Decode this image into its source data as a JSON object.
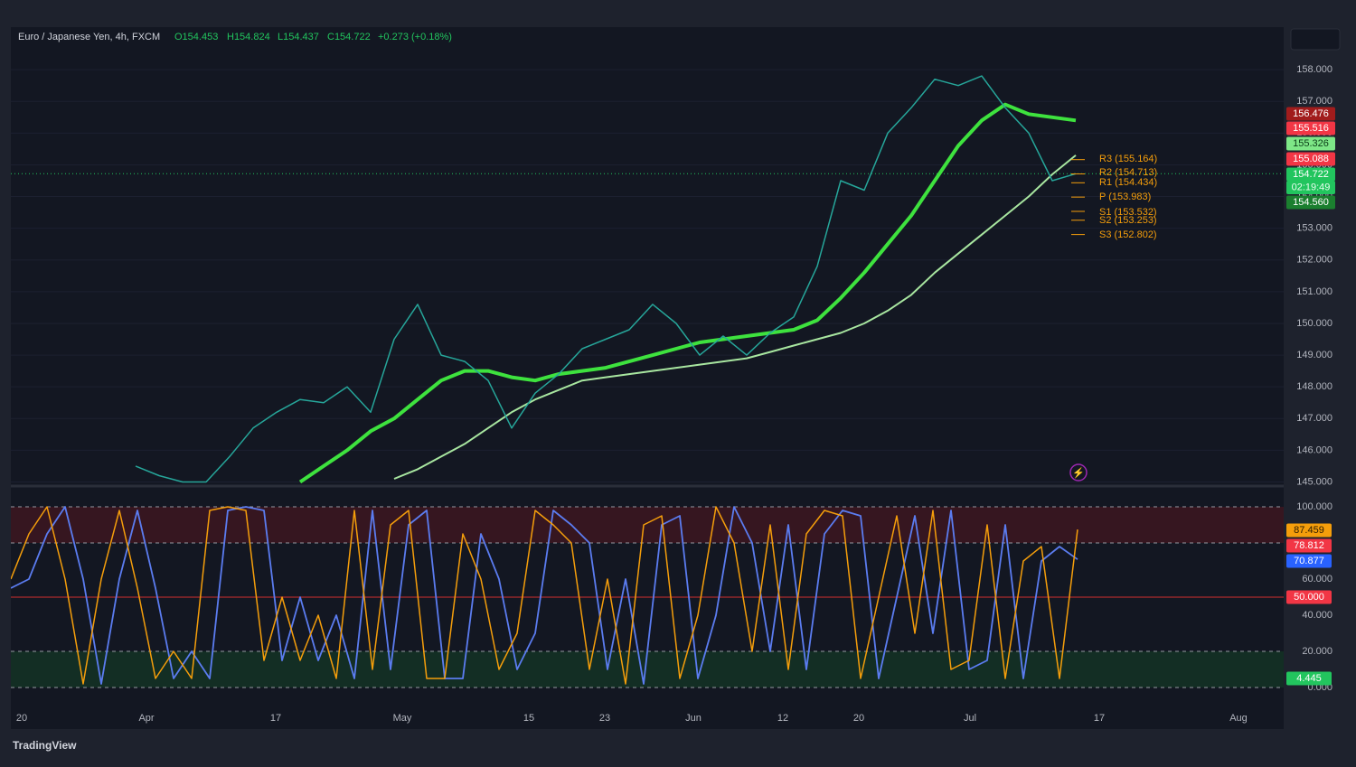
{
  "header": {
    "symbol": "Euro / Japanese Yen, 4h, FXCM",
    "open": "O154.453",
    "high": "H154.824",
    "low": "L154.437",
    "close": "C154.722",
    "change": "+0.273 (+0.18%)"
  },
  "price_pane": {
    "ylim": [
      144.9,
      159.2
    ],
    "yticks": [
      {
        "value": 158,
        "label": "158.000"
      },
      {
        "value": 157,
        "label": "157.000"
      },
      {
        "value": 156,
        "label": "156.000"
      },
      {
        "value": 155,
        "label": "155.000"
      },
      {
        "value": 154,
        "label": "154.000"
      },
      {
        "value": 153,
        "label": "153.000"
      },
      {
        "value": 152,
        "label": "152.000"
      },
      {
        "value": 151,
        "label": "151.000"
      },
      {
        "value": 150,
        "label": "150.000"
      },
      {
        "value": 149,
        "label": "149.000"
      },
      {
        "value": 148,
        "label": "148.000"
      },
      {
        "value": 147,
        "label": "147.000"
      },
      {
        "value": 146,
        "label": "146.000"
      },
      {
        "value": 145,
        "label": "145.000"
      }
    ],
    "close": [
      145.5,
      145.2,
      145.0,
      145.0,
      145.8,
      146.7,
      147.2,
      147.6,
      147.5,
      148.0,
      147.2,
      149.5,
      150.6,
      149.0,
      148.8,
      148.2,
      146.7,
      147.8,
      148.4,
      149.2,
      149.5,
      149.8,
      150.6,
      150.0,
      149.0,
      149.6,
      149.0,
      149.7,
      150.2,
      151.8,
      154.5,
      154.2,
      156.0,
      156.8,
      157.7,
      157.5,
      157.8,
      156.8,
      156.0,
      154.5,
      154.72
    ],
    "ma_fast": [
      null,
      null,
      null,
      null,
      null,
      null,
      null,
      145.0,
      145.5,
      146.0,
      146.6,
      147.0,
      147.6,
      148.2,
      148.5,
      148.5,
      148.3,
      148.2,
      148.4,
      148.5,
      148.6,
      148.8,
      149.0,
      149.2,
      149.4,
      149.5,
      149.6,
      149.7,
      149.8,
      150.1,
      150.8,
      151.6,
      152.5,
      153.4,
      154.5,
      155.6,
      156.4,
      156.9,
      156.6,
      156.5,
      156.4
    ],
    "ma_slow": [
      null,
      null,
      null,
      null,
      null,
      null,
      null,
      null,
      null,
      null,
      null,
      145.1,
      145.4,
      145.8,
      146.2,
      146.7,
      147.2,
      147.6,
      147.9,
      148.2,
      148.3,
      148.4,
      148.5,
      148.6,
      148.7,
      148.8,
      148.9,
      149.1,
      149.3,
      149.5,
      149.7,
      150.0,
      150.4,
      150.9,
      151.6,
      152.2,
      152.8,
      153.4,
      154.0,
      154.7,
      155.3
    ],
    "colors": {
      "close": "#26a69a",
      "ma_fast": "#3ee23e",
      "ma_slow": "#a8e6a0"
    },
    "last_price": 154.722,
    "countdown": "02:19:49",
    "price_badges": [
      {
        "value": 156.476,
        "label": "156.476",
        "color": "#a11c1c"
      },
      {
        "value": 155.516,
        "label": "155.516",
        "color": "#f23645"
      },
      {
        "value": 155.326,
        "label": "155.326",
        "color": "#7ee787"
      },
      {
        "value": 155.088,
        "label": "155.088",
        "color": "#f23645"
      },
      {
        "value": 154.722,
        "label": "154.722",
        "color": "#22c55e"
      },
      {
        "value": 154.56,
        "label": "154.560",
        "color": "#1b7f2f"
      }
    ],
    "pivots": [
      {
        "value": 155.164,
        "label": "R3 (155.164)"
      },
      {
        "value": 154.713,
        "label": "R2 (154.713)"
      },
      {
        "value": 154.434,
        "label": "R1 (154.434)"
      },
      {
        "value": 153.983,
        "label": "P (153.983)"
      },
      {
        "value": 153.532,
        "label": "S1 (153.532)"
      },
      {
        "value": 153.253,
        "label": "S2 (153.253)"
      },
      {
        "value": 152.802,
        "label": "S3 (152.802)"
      }
    ]
  },
  "oscillator": {
    "ylim": [
      -3.5,
      110.5
    ],
    "yticks": [
      {
        "value": 100,
        "label": "100.000"
      },
      {
        "value": 60,
        "label": "60.000"
      },
      {
        "value": 40,
        "label": "40.000"
      },
      {
        "value": 20,
        "label": "20.000"
      },
      {
        "value": 0,
        "label": "0.000"
      }
    ],
    "k": [
      60,
      85,
      100,
      60,
      2,
      60,
      98,
      55,
      5,
      20,
      5,
      98,
      100,
      98,
      15,
      50,
      15,
      40,
      5,
      98,
      10,
      90,
      98,
      5,
      5,
      85,
      60,
      10,
      30,
      98,
      90,
      80,
      10,
      60,
      2,
      90,
      95,
      5,
      40,
      100,
      80,
      20,
      90,
      10,
      85,
      98,
      95,
      5,
      50,
      95,
      30,
      98,
      10,
      15,
      90,
      5,
      70,
      78,
      5,
      87.459
    ],
    "d": [
      55,
      60,
      85,
      100,
      60,
      2,
      60,
      98,
      55,
      5,
      20,
      5,
      98,
      100,
      98,
      15,
      50,
      15,
      40,
      5,
      98,
      10,
      90,
      98,
      5,
      5,
      85,
      60,
      10,
      30,
      98,
      90,
      80,
      10,
      60,
      2,
      90,
      95,
      5,
      40,
      100,
      80,
      20,
      90,
      10,
      85,
      98,
      95,
      5,
      50,
      95,
      30,
      98,
      10,
      15,
      90,
      5,
      70,
      78,
      70.877
    ],
    "colors": {
      "k": "#f59e0b",
      "d": "#5b7cf0"
    },
    "overbought": 80,
    "oversold": 20,
    "mid": 50,
    "badges": [
      {
        "value": 87.459,
        "label": "87.459",
        "color": "#f59e0b"
      },
      {
        "value": 78.812,
        "label": "78.812",
        "color": "#f23645"
      },
      {
        "value": 70.877,
        "label": "70.877",
        "color": "#2962ff"
      },
      {
        "value": 50,
        "label": "50.000",
        "color": "#f23645"
      },
      {
        "value": 4.445,
        "label": "4.445",
        "color": "#22c55e"
      }
    ]
  },
  "time_axis": [
    "20",
    "Apr",
    "17",
    "May",
    "15",
    "23",
    "Jun",
    "12",
    "20",
    "Jul",
    "17",
    "Aug"
  ],
  "brand": "TradingView"
}
